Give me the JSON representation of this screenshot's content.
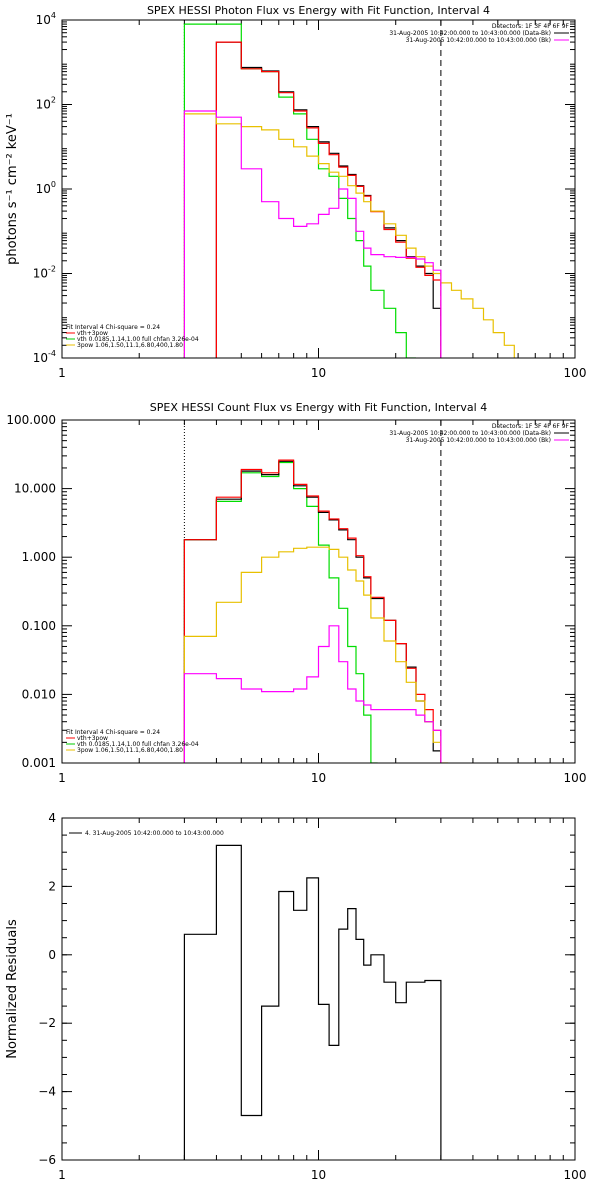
{
  "chart_data": [
    {
      "type": "line",
      "title": "SPEX HESSI Photon Flux vs Energy with Fit Function, Interval 4",
      "ylabel": "photons s⁻¹ cm⁻² keV⁻¹",
      "xlabel": "",
      "xscale": "log",
      "yscale": "log",
      "xlim": [
        1,
        100
      ],
      "ylim": [
        0.0001,
        10000
      ],
      "xticks": [
        {
          "v": 1,
          "label": "1"
        },
        {
          "v": 10,
          "label": "10"
        },
        {
          "v": 100,
          "label": "100"
        }
      ],
      "yticks": [
        {
          "v": 0.0001,
          "base": "10",
          "exp": "-4"
        },
        {
          "v": 0.01,
          "base": "10",
          "exp": "-2"
        },
        {
          "v": 1,
          "base": "10",
          "exp": "0"
        },
        {
          "v": 100,
          "base": "10",
          "exp": "2"
        },
        {
          "v": 10000,
          "base": "10",
          "exp": "4"
        }
      ],
      "vlines": [
        {
          "x": 3.0,
          "style": "dotted"
        },
        {
          "x": 30.0,
          "style": "dashed"
        }
      ],
      "legend_right": {
        "lines": [
          {
            "text": "Detectors: 1F 3F 4F 6F 9F",
            "color": ""
          },
          {
            "text": "31-Aug-2005 10:42:00.000 to 10:43:00.000 (Data-Bk)",
            "color": "#000000"
          },
          {
            "text": "31-Aug-2005 10:42:00.000 to 10:43:00.000 (Bk)",
            "color": "#ff00ff"
          }
        ]
      },
      "legend_left": {
        "header": "Fit Interval 4   Chi-square = 0.24",
        "lines": [
          {
            "text": "vth+3pow",
            "color": "#ff0000"
          },
          {
            "text": "vth 0.0185,1.14,1.00  full chfan 3.26e-04",
            "color": "#00cc00"
          },
          {
            "text": "3pow 1.06,1.50,11.1,6.80,400,1.80",
            "color": "#e8c000"
          }
        ]
      },
      "series": [
        {
          "color": "#00dd00",
          "edges": [
            3.0,
            4.0,
            5.0,
            6.0,
            7.0,
            8.0,
            9.0,
            10.0,
            11.0,
            12.0,
            13.0,
            14.0,
            15.0,
            16.0,
            18.0,
            20.0,
            22.0,
            24.0
          ],
          "values": [
            8000,
            8000,
            700,
            600,
            150,
            60,
            15,
            3,
            2,
            0.6,
            0.2,
            0.06,
            0.015,
            0.004,
            0.0015,
            0.0004,
            0.0001
          ]
        },
        {
          "color": "#000000",
          "edges": [
            4.0,
            5.0,
            6.0,
            7.0,
            8.0,
            9.0,
            10.0,
            11.0,
            12.0,
            13.0,
            14.0,
            15.0,
            16.0,
            18.0,
            20.0,
            22.0,
            24.0,
            26.0,
            28.0,
            30.0
          ],
          "values": [
            3000,
            750,
            620,
            200,
            75,
            30,
            13,
            7,
            3.5,
            2.2,
            1.2,
            0.7,
            0.3,
            0.12,
            0.06,
            0.025,
            0.015,
            0.01,
            0.0015
          ]
        },
        {
          "color": "#ff0000",
          "edges": [
            4.0,
            5.0,
            6.0,
            7.0,
            8.0,
            9.0,
            10.0,
            11.0,
            12.0,
            13.0,
            14.0,
            15.0,
            16.0,
            18.0,
            20.0,
            22.0,
            24.0,
            26.0,
            28.0,
            30.0
          ],
          "values": [
            3000,
            700,
            600,
            190,
            70,
            28,
            12,
            6.5,
            3.3,
            2.1,
            1.15,
            0.68,
            0.29,
            0.11,
            0.055,
            0.023,
            0.014,
            0.009,
            0.007
          ]
        },
        {
          "color": "#e8c000",
          "edges": [
            3.0,
            4.0,
            5.0,
            6.0,
            7.0,
            8.0,
            9.0,
            10.0,
            11.0,
            12.0,
            13.0,
            14.0,
            15.0,
            16.0,
            18.0,
            20.0,
            22.0,
            24.0,
            26.0,
            28.0,
            30.0,
            33.0,
            36.0,
            40.0,
            44.0,
            48.0,
            53.0,
            58.0
          ],
          "values": [
            60,
            35,
            30,
            25,
            15,
            10,
            6,
            4,
            2.5,
            2,
            1.2,
            0.8,
            0.5,
            0.3,
            0.15,
            0.08,
            0.04,
            0.025,
            0.015,
            0.01,
            0.006,
            0.004,
            0.0025,
            0.0015,
            0.0008,
            0.0004,
            0.0002
          ]
        },
        {
          "color": "#ff00ff",
          "edges": [
            3.0,
            4.0,
            5.0,
            6.0,
            7.0,
            8.0,
            9.0,
            10.0,
            11.0,
            12.0,
            13.0,
            14.0,
            15.0,
            16.0,
            18.0,
            20.0,
            22.0,
            24.0,
            26.0,
            28.0,
            30.0
          ],
          "values": [
            70,
            50,
            3,
            0.5,
            0.2,
            0.13,
            0.15,
            0.25,
            0.35,
            1.0,
            0.6,
            0.1,
            0.04,
            0.028,
            0.025,
            0.024,
            0.024,
            0.022,
            0.018,
            0.012
          ]
        }
      ]
    },
    {
      "type": "line",
      "title": "SPEX HESSI Count Flux vs Energy with Fit Function, Interval 4",
      "ylabel": "",
      "xlabel": "",
      "xscale": "log",
      "yscale": "log",
      "xlim": [
        1,
        100
      ],
      "ylim": [
        0.001,
        100
      ],
      "xticks": [
        {
          "v": 1,
          "label": "1"
        },
        {
          "v": 10,
          "label": "10"
        },
        {
          "v": 100,
          "label": "100"
        }
      ],
      "yticks": [
        {
          "v": 0.001,
          "label": "0.001"
        },
        {
          "v": 0.01,
          "label": "0.010"
        },
        {
          "v": 0.1,
          "label": "0.100"
        },
        {
          "v": 1,
          "label": "1.000"
        },
        {
          "v": 10,
          "label": "10.000"
        },
        {
          "v": 100,
          "label": "100.000"
        }
      ],
      "vlines": [
        {
          "x": 3.0,
          "style": "dotted"
        },
        {
          "x": 30.0,
          "style": "dashed"
        }
      ],
      "legend_right": {
        "lines": [
          {
            "text": "Detectors: 1F 3F 4F 6F 9F",
            "color": ""
          },
          {
            "text": "31-Aug-2005 10:42:00.000 to 10:43:00.000 (Data-Bk)",
            "color": "#000000"
          },
          {
            "text": "31-Aug-2005 10:42:00.000 to 10:43:00.000 (Bk)",
            "color": "#ff00ff"
          }
        ]
      },
      "legend_left": {
        "header": "Fit Interval 4   Chi-square = 0.24",
        "lines": [
          {
            "text": "vth+3pow",
            "color": "#ff0000"
          },
          {
            "text": "vth 0.0185,1.14,1.00  full chfan 3.26e-04",
            "color": "#00cc00"
          },
          {
            "text": "3pow 1.06,1.50,11.1,6.80,400,1.80",
            "color": "#e8c000"
          }
        ]
      },
      "series": [
        {
          "color": "#00dd00",
          "edges": [
            3.0,
            4.0,
            5.0,
            6.0,
            7.0,
            8.0,
            9.0,
            10.0,
            11.0,
            12.0,
            13.0,
            14.0,
            15.0,
            16.0,
            17.0
          ],
          "values": [
            1.8,
            6.5,
            17,
            15,
            24,
            10,
            5.5,
            1.5,
            0.5,
            0.18,
            0.05,
            0.02,
            0.005,
            0.001
          ]
        },
        {
          "color": "#000000",
          "edges": [
            3.0,
            4.0,
            5.0,
            6.0,
            7.0,
            8.0,
            9.0,
            10.0,
            11.0,
            12.0,
            13.0,
            14.0,
            15.0,
            16.0,
            18.0,
            20.0,
            22.0,
            24.0,
            26.0,
            28.0,
            30.0
          ],
          "values": [
            1.8,
            7,
            18,
            16,
            25,
            11,
            7.5,
            4.5,
            3.5,
            2.5,
            1.8,
            1.0,
            0.5,
            0.25,
            0.12,
            0.055,
            0.025,
            0.008,
            0.004,
            0.0015
          ]
        },
        {
          "color": "#ff0000",
          "edges": [
            3.0,
            4.0,
            5.0,
            6.0,
            7.0,
            8.0,
            9.0,
            10.0,
            11.0,
            12.0,
            13.0,
            14.0,
            15.0,
            16.0,
            18.0,
            20.0,
            22.0,
            24.0,
            26.0,
            28.0,
            30.0
          ],
          "values": [
            1.8,
            7.5,
            19,
            17,
            26,
            11.5,
            7.8,
            4.7,
            3.6,
            2.6,
            1.9,
            1.05,
            0.52,
            0.26,
            0.12,
            0.055,
            0.024,
            0.01,
            0.006,
            0.003
          ]
        },
        {
          "color": "#e8c000",
          "edges": [
            3.0,
            4.0,
            5.0,
            6.0,
            7.0,
            8.0,
            9.0,
            10.0,
            11.0,
            12.0,
            13.0,
            14.0,
            15.0,
            16.0,
            18.0,
            20.0,
            22.0,
            24.0,
            26.0,
            28.0,
            30.0,
            32.0
          ],
          "values": [
            0.07,
            0.22,
            0.6,
            1.0,
            1.2,
            1.35,
            1.4,
            1.4,
            1.3,
            1.0,
            0.65,
            0.45,
            0.28,
            0.13,
            0.06,
            0.03,
            0.015,
            0.008,
            0.004,
            0.002,
            0.001
          ]
        },
        {
          "color": "#ff00ff",
          "edges": [
            3.0,
            4.0,
            5.0,
            6.0,
            7.0,
            8.0,
            9.0,
            10.0,
            11.0,
            12.0,
            13.0,
            14.0,
            15.0,
            16.0,
            18.0,
            20.0,
            22.0,
            24.0,
            26.0,
            28.0,
            30.0
          ],
          "values": [
            0.02,
            0.017,
            0.012,
            0.011,
            0.011,
            0.012,
            0.018,
            0.05,
            0.1,
            0.03,
            0.012,
            0.008,
            0.007,
            0.006,
            0.006,
            0.006,
            0.006,
            0.005,
            0.004,
            0.003
          ]
        }
      ]
    },
    {
      "type": "line",
      "title": "",
      "ylabel": "Normalized Residuals",
      "xlabel": "",
      "xscale": "log",
      "yscale": "linear",
      "xlim": [
        1,
        100
      ],
      "ylim": [
        -6,
        4
      ],
      "xticks": [
        {
          "v": 1,
          "label": "1"
        },
        {
          "v": 10,
          "label": "10"
        },
        {
          "v": 100,
          "label": "100"
        }
      ],
      "yticks": [
        {
          "v": -6,
          "label": "−6"
        },
        {
          "v": -4,
          "label": "−4"
        },
        {
          "v": -2,
          "label": "−2"
        },
        {
          "v": 0,
          "label": "0"
        },
        {
          "v": 2,
          "label": "2"
        },
        {
          "v": 4,
          "label": "4"
        }
      ],
      "legend_left": {
        "header": "",
        "lines": [
          {
            "text": "4. 31-Aug-2005 10:42:00.000 to 10:43:00.000",
            "color": "#000000"
          }
        ]
      },
      "series": [
        {
          "color": "#000000",
          "baseline": -6,
          "edges": [
            3.0,
            4.0,
            5.0,
            6.0,
            7.0,
            8.0,
            9.0,
            10.0,
            11.0,
            12.0,
            13.0,
            14.0,
            15.0,
            16.0,
            18.0,
            20.0,
            22.0,
            24.0,
            26.0,
            28.0,
            30.0
          ],
          "values": [
            0.6,
            3.2,
            -4.7,
            -1.5,
            1.85,
            1.3,
            2.25,
            -1.45,
            -2.65,
            0.75,
            1.35,
            0.45,
            -0.3,
            0,
            -0.8,
            -1.4,
            -0.8,
            -0.8,
            -0.75,
            -0.75
          ]
        }
      ]
    }
  ]
}
